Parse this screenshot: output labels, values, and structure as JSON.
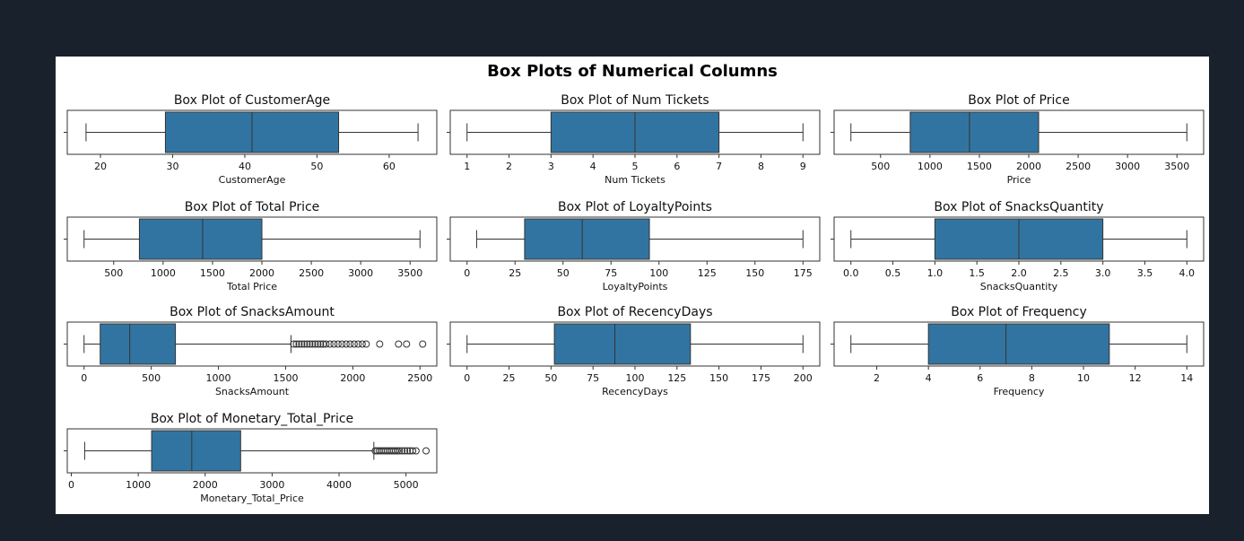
{
  "figure": {
    "suptitle": "Box Plots of Numerical Columns",
    "colors": {
      "box_fill": "#3274a1",
      "line": "#333333",
      "axes_edge": "#333333",
      "background": "#ffffff",
      "window_bg": "#19222c"
    }
  },
  "chart_data": [
    {
      "type": "box",
      "title": "Box Plot of CustomerAge",
      "xlabel": "CustomerAge",
      "xlim": [
        15.4,
        66.6
      ],
      "xticks": [
        20,
        30,
        40,
        50,
        60
      ],
      "stats": {
        "whislo": 18,
        "q1": 29,
        "med": 41,
        "q3": 53,
        "whishi": 64
      },
      "outliers": []
    },
    {
      "type": "box",
      "title": "Box Plot of Num Tickets",
      "xlabel": "Num Tickets",
      "xlim": [
        0.6,
        9.4
      ],
      "xticks": [
        1,
        2,
        3,
        4,
        5,
        6,
        7,
        8,
        9
      ],
      "stats": {
        "whislo": 1,
        "q1": 3,
        "med": 5,
        "q3": 7,
        "whishi": 9
      },
      "outliers": []
    },
    {
      "type": "box",
      "title": "Box Plot of Price",
      "xlabel": "Price",
      "xlim": [
        30,
        3770
      ],
      "xticks": [
        500,
        1000,
        1500,
        2000,
        2500,
        3000,
        3500
      ],
      "stats": {
        "whislo": 200,
        "q1": 800,
        "med": 1400,
        "q3": 2100,
        "whishi": 3600
      },
      "outliers": []
    },
    {
      "type": "box",
      "title": "Box Plot of Total Price",
      "xlabel": "Total Price",
      "xlim": [
        30,
        3770
      ],
      "xticks": [
        500,
        1000,
        1500,
        2000,
        2500,
        3000,
        3500
      ],
      "stats": {
        "whislo": 200,
        "q1": 760,
        "med": 1400,
        "q3": 2000,
        "whishi": 3600
      },
      "outliers": []
    },
    {
      "type": "box",
      "title": "Box Plot of LoyaltyPoints",
      "xlabel": "LoyaltyPoints",
      "xlim": [
        -8.75,
        183.75
      ],
      "xticks": [
        0,
        25,
        50,
        75,
        100,
        125,
        150,
        175
      ],
      "stats": {
        "whislo": 5,
        "q1": 30,
        "med": 60,
        "q3": 95,
        "whishi": 175
      },
      "outliers": []
    },
    {
      "type": "box",
      "title": "Box Plot of SnacksQuantity",
      "xlabel": "SnacksQuantity",
      "xlim": [
        -0.2,
        4.2
      ],
      "xticks": [
        0.0,
        0.5,
        1.0,
        1.5,
        2.0,
        2.5,
        3.0,
        3.5,
        4.0
      ],
      "xticklabels": [
        "0.0",
        "0.5",
        "1.0",
        "1.5",
        "2.0",
        "2.5",
        "3.0",
        "3.5",
        "4.0"
      ],
      "stats": {
        "whislo": 0,
        "q1": 1,
        "med": 2,
        "q3": 3,
        "whishi": 4
      },
      "outliers": []
    },
    {
      "type": "box",
      "title": "Box Plot of SnacksAmount",
      "xlabel": "SnacksAmount",
      "xlim": [
        -125,
        2625
      ],
      "xticks": [
        0,
        500,
        1000,
        1500,
        2000,
        2500
      ],
      "stats": {
        "whislo": 0,
        "q1": 120,
        "med": 340,
        "q3": 680,
        "whishi": 1540
      },
      "outliers": [
        1560,
        1580,
        1600,
        1620,
        1640,
        1660,
        1680,
        1700,
        1720,
        1740,
        1760,
        1780,
        1800,
        1830,
        1860,
        1890,
        1920,
        1950,
        1980,
        2010,
        2040,
        2070,
        2100,
        2200,
        2340,
        2400,
        2520
      ]
    },
    {
      "type": "box",
      "title": "Box Plot of RecencyDays",
      "xlabel": "RecencyDays",
      "xlim": [
        -10,
        210
      ],
      "xticks": [
        0,
        25,
        50,
        75,
        100,
        125,
        150,
        175,
        200
      ],
      "stats": {
        "whislo": 0,
        "q1": 52,
        "med": 88,
        "q3": 133,
        "whishi": 200
      },
      "outliers": []
    },
    {
      "type": "box",
      "title": "Box Plot of Frequency",
      "xlabel": "Frequency",
      "xlim": [
        0.35,
        14.65
      ],
      "xticks": [
        2,
        4,
        6,
        8,
        10,
        12,
        14
      ],
      "stats": {
        "whislo": 1,
        "q1": 4,
        "med": 7,
        "q3": 11,
        "whishi": 14
      },
      "outliers": []
    },
    {
      "type": "box",
      "title": "Box Plot of Monetary_Total_Price",
      "xlabel": "Monetary_Total_Price",
      "xlim": [
        -60,
        5460
      ],
      "xticks": [
        0,
        1000,
        2000,
        3000,
        4000,
        5000
      ],
      "stats": {
        "whislo": 200,
        "q1": 1200,
        "med": 1800,
        "q3": 2530,
        "whishi": 4520
      },
      "outliers": [
        4540,
        4570,
        4600,
        4630,
        4660,
        4690,
        4720,
        4750,
        4780,
        4810,
        4840,
        4870,
        4900,
        4940,
        4980,
        5020,
        5060,
        5100,
        5150,
        5300
      ]
    }
  ]
}
